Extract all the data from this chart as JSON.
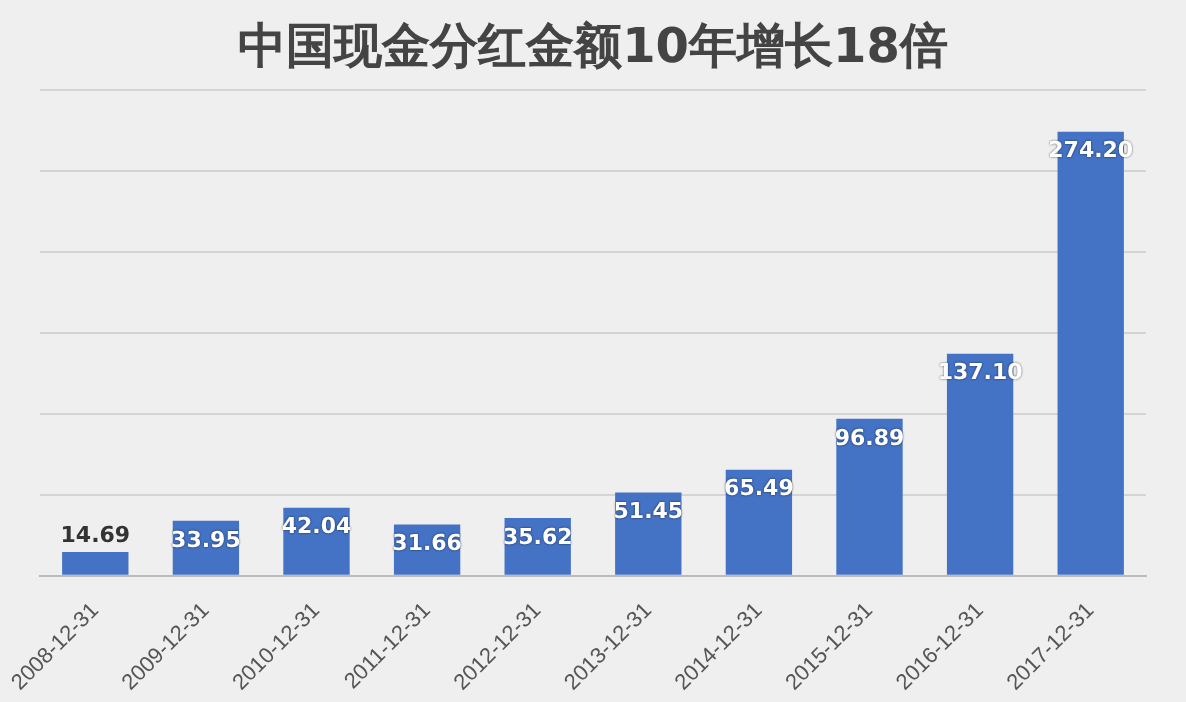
{
  "chart_data": {
    "type": "bar",
    "title": "中国现金分红金额10年增长18倍",
    "categories": [
      "2008-12-31",
      "2009-12-31",
      "2010-12-31",
      "2011-12-31",
      "2012-12-31",
      "2013-12-31",
      "2014-12-31",
      "2015-12-31",
      "2016-12-31",
      "2017-12-31"
    ],
    "values": [
      14.69,
      33.95,
      42.04,
      31.66,
      35.62,
      51.45,
      65.49,
      96.89,
      137.1,
      274.2
    ],
    "value_labels": [
      "14.69",
      "33.95",
      "42.04",
      "31.66",
      "35.62",
      "51.45",
      "65.49",
      "96.89",
      "137.10",
      "274.20"
    ],
    "color": "#4472c4",
    "ylim": [
      0,
      300
    ],
    "yticks": [
      {
        "value": 0,
        "label": null
      },
      {
        "value": 50,
        "label": null
      },
      {
        "value": 100,
        "label": null
      },
      {
        "value": 150,
        "label": null
      },
      {
        "value": 200,
        "label": null
      },
      {
        "value": 250,
        "label": null
      },
      {
        "value": 300,
        "label": null
      }
    ],
    "grid": "y",
    "tick_labels": "x",
    "legend": false
  }
}
